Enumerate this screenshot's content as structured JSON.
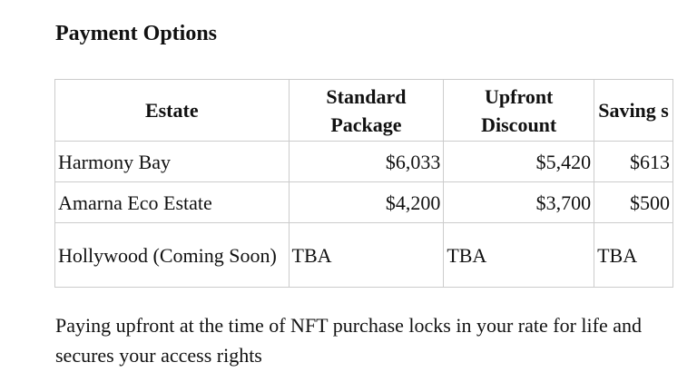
{
  "title": "Payment Options",
  "table": {
    "headers": [
      "Estate",
      "Standard Package",
      "Upfront Discount",
      "Saving s"
    ],
    "rows": [
      [
        "Harmony Bay",
        "$6,033",
        "$5,420",
        "$613"
      ],
      [
        "Amarna Eco Estate",
        "$4,200",
        "$3,700",
        "$500"
      ],
      [
        "Hollywood (Coming Soon)",
        "TBA",
        "TBA",
        "TBA"
      ]
    ]
  },
  "note": "Paying upfront at the time of NFT purchase locks in your rate for life and secures your access rights"
}
